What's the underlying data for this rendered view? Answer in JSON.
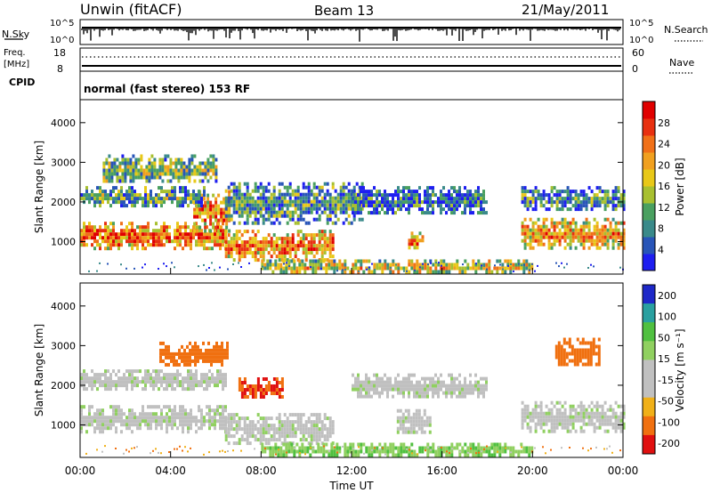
{
  "header": {
    "station": "Unwin (fitACF)",
    "beam": "Beam 13",
    "date": "21/May/2011"
  },
  "top_strip": {
    "left_label": "N.Sky",
    "right_label": "N.Search",
    "left_ticks": [
      "10^5",
      "10^0"
    ],
    "right_ticks": [
      "10^5",
      "10^0"
    ]
  },
  "freq_strip": {
    "left_label_line1": "Freq.",
    "left_label_line2": "[MHz]",
    "left_ticks": [
      "18",
      "8"
    ],
    "right_label": "Nave",
    "right_ticks": [
      "60",
      "0"
    ]
  },
  "cpid_strip": {
    "label": "CPID",
    "text": "normal (fast stereo) 153 RF"
  },
  "time_axis": {
    "label": "Time UT",
    "ticks": [
      "00:00",
      "04:00",
      "08:00",
      "12:00",
      "16:00",
      "20:00",
      "00:00"
    ]
  },
  "chart_data": [
    {
      "type": "heatmap",
      "name": "power",
      "ylabel": "Slant Range [km]",
      "yticks": [
        "1000",
        "2000",
        "3000",
        "4000"
      ],
      "ylim": [
        180,
        4580
      ],
      "xlim_hours": [
        0,
        24
      ],
      "colorbar": {
        "label": "Power [dB]",
        "ticks": [
          "4",
          "8",
          "12",
          "16",
          "20",
          "24",
          "28"
        ],
        "colors": [
          "#1e1ef0",
          "#2855b8",
          "#3a8a8a",
          "#4aa060",
          "#a8c030",
          "#e8c818",
          "#f0a020",
          "#f07018",
          "#e83010",
          "#e00000"
        ]
      },
      "bands": [
        {
          "t0": 0.0,
          "t1": 6.4,
          "r0": 850,
          "r1": 1500,
          "level": 0.75
        },
        {
          "t0": 5.0,
          "t1": 6.6,
          "r0": 1300,
          "r1": 2300,
          "level": 0.7
        },
        {
          "t0": 0.0,
          "t1": 5.5,
          "r0": 1900,
          "r1": 2400,
          "level": 0.35
        },
        {
          "t0": 1.0,
          "t1": 6.0,
          "r0": 2500,
          "r1": 3200,
          "level": 0.4
        },
        {
          "t0": 6.4,
          "t1": 11.2,
          "r0": 550,
          "r1": 1300,
          "level": 0.7
        },
        {
          "t0": 6.4,
          "t1": 12.5,
          "r0": 1500,
          "r1": 2500,
          "level": 0.3
        },
        {
          "t0": 8.0,
          "t1": 20.0,
          "r0": 250,
          "r1": 550,
          "level": 0.55
        },
        {
          "t0": 14.5,
          "t1": 15.2,
          "r0": 850,
          "r1": 1250,
          "level": 0.8
        },
        {
          "t0": 12.0,
          "t1": 18.0,
          "r0": 1700,
          "r1": 2400,
          "level": 0.2
        },
        {
          "t0": 19.5,
          "t1": 24.0,
          "r0": 850,
          "r1": 1600,
          "level": 0.65
        },
        {
          "t0": 19.5,
          "t1": 24.0,
          "r0": 1800,
          "r1": 2400,
          "level": 0.25
        }
      ]
    },
    {
      "type": "heatmap",
      "name": "velocity",
      "ylabel": "Slant Range [km]",
      "yticks": [
        "1000",
        "2000",
        "3000",
        "4000"
      ],
      "ylim": [
        180,
        4580
      ],
      "xlim_hours": [
        0,
        24
      ],
      "colorbar": {
        "label": "Velocity [m s⁻¹]",
        "ticks": [
          "200",
          "100",
          "50",
          "15",
          "-15",
          "-50",
          "-100",
          "-200"
        ],
        "colors": [
          "#1e28c8",
          "#2aa0a0",
          "#50c040",
          "#90d060",
          "#c0c0c0",
          "#c0c0c0",
          "#f0b018",
          "#f07010",
          "#e01010"
        ]
      },
      "bands": [
        {
          "t0": 0.0,
          "t1": 6.4,
          "r0": 850,
          "r1": 1500,
          "v": 0
        },
        {
          "t0": 0.0,
          "t1": 6.4,
          "r0": 1900,
          "r1": 2400,
          "v": 0
        },
        {
          "t0": 3.5,
          "t1": 6.5,
          "r0": 2500,
          "r1": 3100,
          "v": -160
        },
        {
          "t0": 7.0,
          "t1": 9.0,
          "r0": 1700,
          "r1": 2200,
          "v": -200
        },
        {
          "t0": 6.4,
          "t1": 11.2,
          "r0": 550,
          "r1": 1300,
          "v": 0
        },
        {
          "t0": 8.0,
          "t1": 20.0,
          "r0": 250,
          "r1": 550,
          "v": 40
        },
        {
          "t0": 14.0,
          "t1": 15.5,
          "r0": 800,
          "r1": 1400,
          "v": 0
        },
        {
          "t0": 12.0,
          "t1": 18.0,
          "r0": 1700,
          "r1": 2300,
          "v": 0
        },
        {
          "t0": 19.5,
          "t1": 24.0,
          "r0": 850,
          "r1": 1600,
          "v": 0
        },
        {
          "t0": 21.0,
          "t1": 23.0,
          "r0": 2500,
          "r1": 3200,
          "v": -150
        }
      ]
    }
  ]
}
